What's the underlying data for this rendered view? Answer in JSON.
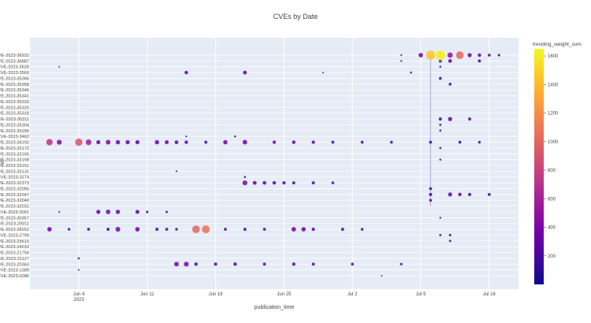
{
  "chart_data": {
    "type": "scatter",
    "title": "CVEs by Date",
    "xlabel": "publication_time",
    "ylabel": "id",
    "x_ticks": [
      "Jun 4",
      "Jun 11",
      "Jun 18",
      "Jun 25",
      "Jul 2",
      "Jul 9",
      "Jul 16"
    ],
    "x_tick_year": "2023",
    "xlim": [
      "2023-05-30",
      "2023-07-19"
    ],
    "y_categories": [
      "CVE-2023-36932",
      "CVE-2023-36887",
      "CVE-2023-3626",
      "CVE-2023-3560",
      "CVE-2023-35366",
      "CVE-2023-35358",
      "CVE-2023-35346",
      "CVE-2023-35341",
      "CVE-2023-35333",
      "CVE-2023-35325",
      "CVE-2023-35318",
      "CVE-2023-35311",
      "CVE-2023-35304",
      "CVE-2023-35296",
      "CVE-2023-3462",
      "CVE-2023-34192",
      "CVE-2023-33172",
      "CVE-2023-33165",
      "CVE-2023-33158",
      "CVE-2023-33151",
      "CVE-2023-33131",
      "CVE-2023-3274",
      "CVE-2023-32373",
      "CVE-2023-32055",
      "CVE-2023-32047",
      "CVE-2023-32040",
      "CVE-2023-32031",
      "CVE-2023-3091",
      "CVE-2023-30357",
      "CVE-2023-29311",
      "CVE-2023-28252",
      "CVE-2023-2799",
      "CVE-2023-25610",
      "CVE-2023-24033",
      "CVE-2023-21756",
      "CVE-2023-21127",
      "CVE-2023-20363",
      "CVE-2023-1389",
      "CVE-2023-0286"
    ],
    "color_scale": {
      "title": "trending_weight_sum",
      "range": [
        0,
        1650
      ],
      "ticks": [
        200,
        400,
        600,
        800,
        1000,
        1200,
        1400,
        1600
      ],
      "colors": [
        "#0d0887",
        "#46039f",
        "#7201a8",
        "#9c179e",
        "#bd3786",
        "#d8576b",
        "#ed7953",
        "#fb9f3a",
        "#fdca26",
        "#f0f921"
      ]
    },
    "series": [
      {
        "points": [
          {
            "x": "2023-07-10",
            "y": "CVE-2023-36932",
            "w": 1450
          },
          {
            "x": "2023-07-11",
            "y": "CVE-2023-36932",
            "w": 1600
          },
          {
            "x": "2023-07-12",
            "y": "CVE-2023-36932",
            "w": 500
          },
          {
            "x": "2023-07-13",
            "y": "CVE-2023-36932",
            "w": 1000
          },
          {
            "x": "2023-07-09",
            "y": "CVE-2023-36932",
            "w": 350
          },
          {
            "x": "2023-07-14",
            "y": "CVE-2023-36932",
            "w": 300
          },
          {
            "x": "2023-07-15",
            "y": "CVE-2023-36932",
            "w": 220
          },
          {
            "x": "2023-07-16",
            "y": "CVE-2023-36932",
            "w": 150
          },
          {
            "x": "2023-07-17",
            "y": "CVE-2023-36932",
            "w": 120
          },
          {
            "x": "2023-07-07",
            "y": "CVE-2023-36932",
            "w": 60
          },
          {
            "x": "2023-07-07",
            "y": "CVE-2023-36887",
            "w": 60
          },
          {
            "x": "2023-07-11",
            "y": "CVE-2023-36887",
            "w": 200
          },
          {
            "x": "2023-07-12",
            "y": "CVE-2023-36887",
            "w": 250
          },
          {
            "x": "2023-07-15",
            "y": "CVE-2023-36887",
            "w": 180
          },
          {
            "x": "2023-06-02",
            "y": "CVE-2023-3626",
            "w": 40
          },
          {
            "x": "2023-07-11",
            "y": "CVE-2023-3626",
            "w": 80
          },
          {
            "x": "2023-06-15",
            "y": "CVE-2023-3560",
            "w": 220
          },
          {
            "x": "2023-06-21",
            "y": "CVE-2023-3560",
            "w": 260
          },
          {
            "x": "2023-06-29",
            "y": "CVE-2023-3560",
            "w": 50
          },
          {
            "x": "2023-07-08",
            "y": "CVE-2023-3560",
            "w": 80
          },
          {
            "x": "2023-07-11",
            "y": "CVE-2023-35366",
            "w": 160
          },
          {
            "x": "2023-07-12",
            "y": "CVE-2023-35358",
            "w": 150
          },
          {
            "x": "2023-07-11",
            "y": "CVE-2023-35311",
            "w": 200
          },
          {
            "x": "2023-07-12",
            "y": "CVE-2023-35311",
            "w": 320
          },
          {
            "x": "2023-07-14",
            "y": "CVE-2023-35311",
            "w": 180
          },
          {
            "x": "2023-07-11",
            "y": "CVE-2023-35304",
            "w": 100
          },
          {
            "x": "2023-07-11",
            "y": "CVE-2023-35296",
            "w": 90
          },
          {
            "x": "2023-06-15",
            "y": "CVE-2023-3462",
            "w": 60
          },
          {
            "x": "2023-06-20",
            "y": "CVE-2023-3462",
            "w": 80
          },
          {
            "x": "2023-06-01",
            "y": "CVE-2023-34192",
            "w": 700
          },
          {
            "x": "2023-06-02",
            "y": "CVE-2023-34192",
            "w": 420
          },
          {
            "x": "2023-06-04",
            "y": "CVE-2023-34192",
            "w": 900
          },
          {
            "x": "2023-06-05",
            "y": "CVE-2023-34192",
            "w": 560
          },
          {
            "x": "2023-06-06",
            "y": "CVE-2023-34192",
            "w": 300
          },
          {
            "x": "2023-06-07",
            "y": "CVE-2023-34192",
            "w": 380
          },
          {
            "x": "2023-06-08",
            "y": "CVE-2023-34192",
            "w": 340
          },
          {
            "x": "2023-06-09",
            "y": "CVE-2023-34192",
            "w": 320
          },
          {
            "x": "2023-06-10",
            "y": "CVE-2023-34192",
            "w": 300
          },
          {
            "x": "2023-06-12",
            "y": "CVE-2023-34192",
            "w": 330
          },
          {
            "x": "2023-06-13",
            "y": "CVE-2023-34192",
            "w": 280
          },
          {
            "x": "2023-06-14",
            "y": "CVE-2023-34192",
            "w": 260
          },
          {
            "x": "2023-06-15",
            "y": "CVE-2023-34192",
            "w": 220
          },
          {
            "x": "2023-06-17",
            "y": "CVE-2023-34192",
            "w": 180
          },
          {
            "x": "2023-06-19",
            "y": "CVE-2023-34192",
            "w": 340
          },
          {
            "x": "2023-06-21",
            "y": "CVE-2023-34192",
            "w": 380
          },
          {
            "x": "2023-06-24",
            "y": "CVE-2023-34192",
            "w": 200
          },
          {
            "x": "2023-06-26",
            "y": "CVE-2023-34192",
            "w": 220
          },
          {
            "x": "2023-06-28",
            "y": "CVE-2023-34192",
            "w": 200
          },
          {
            "x": "2023-06-30",
            "y": "CVE-2023-34192",
            "w": 180
          },
          {
            "x": "2023-07-03",
            "y": "CVE-2023-34192",
            "w": 160
          },
          {
            "x": "2023-07-06",
            "y": "CVE-2023-34192",
            "w": 150
          },
          {
            "x": "2023-07-10",
            "y": "CVE-2023-34192",
            "w": 180
          },
          {
            "x": "2023-07-13",
            "y": "CVE-2023-34192",
            "w": 160
          },
          {
            "x": "2023-07-15",
            "y": "CVE-2023-34192",
            "w": 140
          },
          {
            "x": "2023-07-11",
            "y": "CVE-2023-33172",
            "w": 90
          },
          {
            "x": "2023-07-11",
            "y": "CVE-2023-33158",
            "w": 80
          },
          {
            "x": "2023-06-14",
            "y": "CVE-2023-33131",
            "w": 60
          },
          {
            "x": "2023-06-21",
            "y": "CVE-2023-3274",
            "w": 80
          },
          {
            "x": "2023-06-21",
            "y": "CVE-2023-32373",
            "w": 420
          },
          {
            "x": "2023-06-22",
            "y": "CVE-2023-32373",
            "w": 260
          },
          {
            "x": "2023-06-23",
            "y": "CVE-2023-32373",
            "w": 240
          },
          {
            "x": "2023-06-24",
            "y": "CVE-2023-32373",
            "w": 220
          },
          {
            "x": "2023-06-25",
            "y": "CVE-2023-32373",
            "w": 200
          },
          {
            "x": "2023-06-26",
            "y": "CVE-2023-32373",
            "w": 180
          },
          {
            "x": "2023-06-28",
            "y": "CVE-2023-32373",
            "w": 180
          },
          {
            "x": "2023-06-30",
            "y": "CVE-2023-32373",
            "w": 150
          },
          {
            "x": "2023-07-10",
            "y": "CVE-2023-32055",
            "w": 160
          },
          {
            "x": "2023-07-10",
            "y": "CVE-2023-32047",
            "w": 200
          },
          {
            "x": "2023-07-12",
            "y": "CVE-2023-32047",
            "w": 300
          },
          {
            "x": "2023-07-13",
            "y": "CVE-2023-32047",
            "w": 220
          },
          {
            "x": "2023-07-14",
            "y": "CVE-2023-32047",
            "w": 200
          },
          {
            "x": "2023-07-16",
            "y": "CVE-2023-32047",
            "w": 160
          },
          {
            "x": "2023-07-10",
            "y": "CVE-2023-32040",
            "w": 150
          },
          {
            "x": "2023-06-02",
            "y": "CVE-2023-3091",
            "w": 60
          },
          {
            "x": "2023-06-06",
            "y": "CVE-2023-3091",
            "w": 300
          },
          {
            "x": "2023-06-07",
            "y": "CVE-2023-3091",
            "w": 360
          },
          {
            "x": "2023-06-08",
            "y": "CVE-2023-3091",
            "w": 320
          },
          {
            "x": "2023-06-10",
            "y": "CVE-2023-3091",
            "w": 280
          },
          {
            "x": "2023-06-11",
            "y": "CVE-2023-3091",
            "w": 120
          },
          {
            "x": "2023-06-13",
            "y": "CVE-2023-3091",
            "w": 100
          },
          {
            "x": "2023-07-11",
            "y": "CVE-2023-30357",
            "w": 70
          },
          {
            "x": "2023-06-01",
            "y": "CVE-2023-28252",
            "w": 350
          },
          {
            "x": "2023-06-03",
            "y": "CVE-2023-28252",
            "w": 140
          },
          {
            "x": "2023-06-05",
            "y": "CVE-2023-28252",
            "w": 160
          },
          {
            "x": "2023-06-07",
            "y": "CVE-2023-28252",
            "w": 180
          },
          {
            "x": "2023-06-08",
            "y": "CVE-2023-28252",
            "w": 400
          },
          {
            "x": "2023-06-10",
            "y": "CVE-2023-28252",
            "w": 360
          },
          {
            "x": "2023-06-12",
            "y": "CVE-2023-28252",
            "w": 200
          },
          {
            "x": "2023-06-13",
            "y": "CVE-2023-28252",
            "w": 160
          },
          {
            "x": "2023-06-14",
            "y": "CVE-2023-28252",
            "w": 140
          },
          {
            "x": "2023-06-16",
            "y": "CVE-2023-28252",
            "w": 1000
          },
          {
            "x": "2023-06-17",
            "y": "CVE-2023-28252",
            "w": 1050
          },
          {
            "x": "2023-06-19",
            "y": "CVE-2023-28252",
            "w": 160
          },
          {
            "x": "2023-06-21",
            "y": "CVE-2023-28252",
            "w": 180
          },
          {
            "x": "2023-06-23",
            "y": "CVE-2023-28252",
            "w": 160
          },
          {
            "x": "2023-06-26",
            "y": "CVE-2023-28252",
            "w": 360
          },
          {
            "x": "2023-06-27",
            "y": "CVE-2023-28252",
            "w": 340
          },
          {
            "x": "2023-06-28",
            "y": "CVE-2023-28252",
            "w": 200
          },
          {
            "x": "2023-07-01",
            "y": "CVE-2023-28252",
            "w": 180
          },
          {
            "x": "2023-07-03",
            "y": "CVE-2023-28252",
            "w": 150
          },
          {
            "x": "2023-07-11",
            "y": "CVE-2023-2799",
            "w": 100
          },
          {
            "x": "2023-07-12",
            "y": "CVE-2023-2799",
            "w": 120
          },
          {
            "x": "2023-07-12",
            "y": "CVE-2023-25610",
            "w": 100
          },
          {
            "x": "2023-06-04",
            "y": "CVE-2023-21127",
            "w": 80
          },
          {
            "x": "2023-06-14",
            "y": "CVE-2023-20363",
            "w": 380
          },
          {
            "x": "2023-06-15",
            "y": "CVE-2023-20363",
            "w": 420
          },
          {
            "x": "2023-06-16",
            "y": "CVE-2023-20363",
            "w": 220
          },
          {
            "x": "2023-06-18",
            "y": "CVE-2023-20363",
            "w": 200
          },
          {
            "x": "2023-06-20",
            "y": "CVE-2023-20363",
            "w": 220
          },
          {
            "x": "2023-06-23",
            "y": "CVE-2023-20363",
            "w": 180
          },
          {
            "x": "2023-06-26",
            "y": "CVE-2023-20363",
            "w": 200
          },
          {
            "x": "2023-06-28",
            "y": "CVE-2023-20363",
            "w": 180
          },
          {
            "x": "2023-07-02",
            "y": "CVE-2023-20363",
            "w": 150
          },
          {
            "x": "2023-07-07",
            "y": "CVE-2023-20363",
            "w": 120
          },
          {
            "x": "2023-06-04",
            "y": "CVE-2023-1389",
            "w": 50
          },
          {
            "x": "2023-07-05",
            "y": "CVE-2023-0286",
            "w": 40
          }
        ]
      }
    ],
    "grid": true,
    "legend": "colorbar-right"
  }
}
